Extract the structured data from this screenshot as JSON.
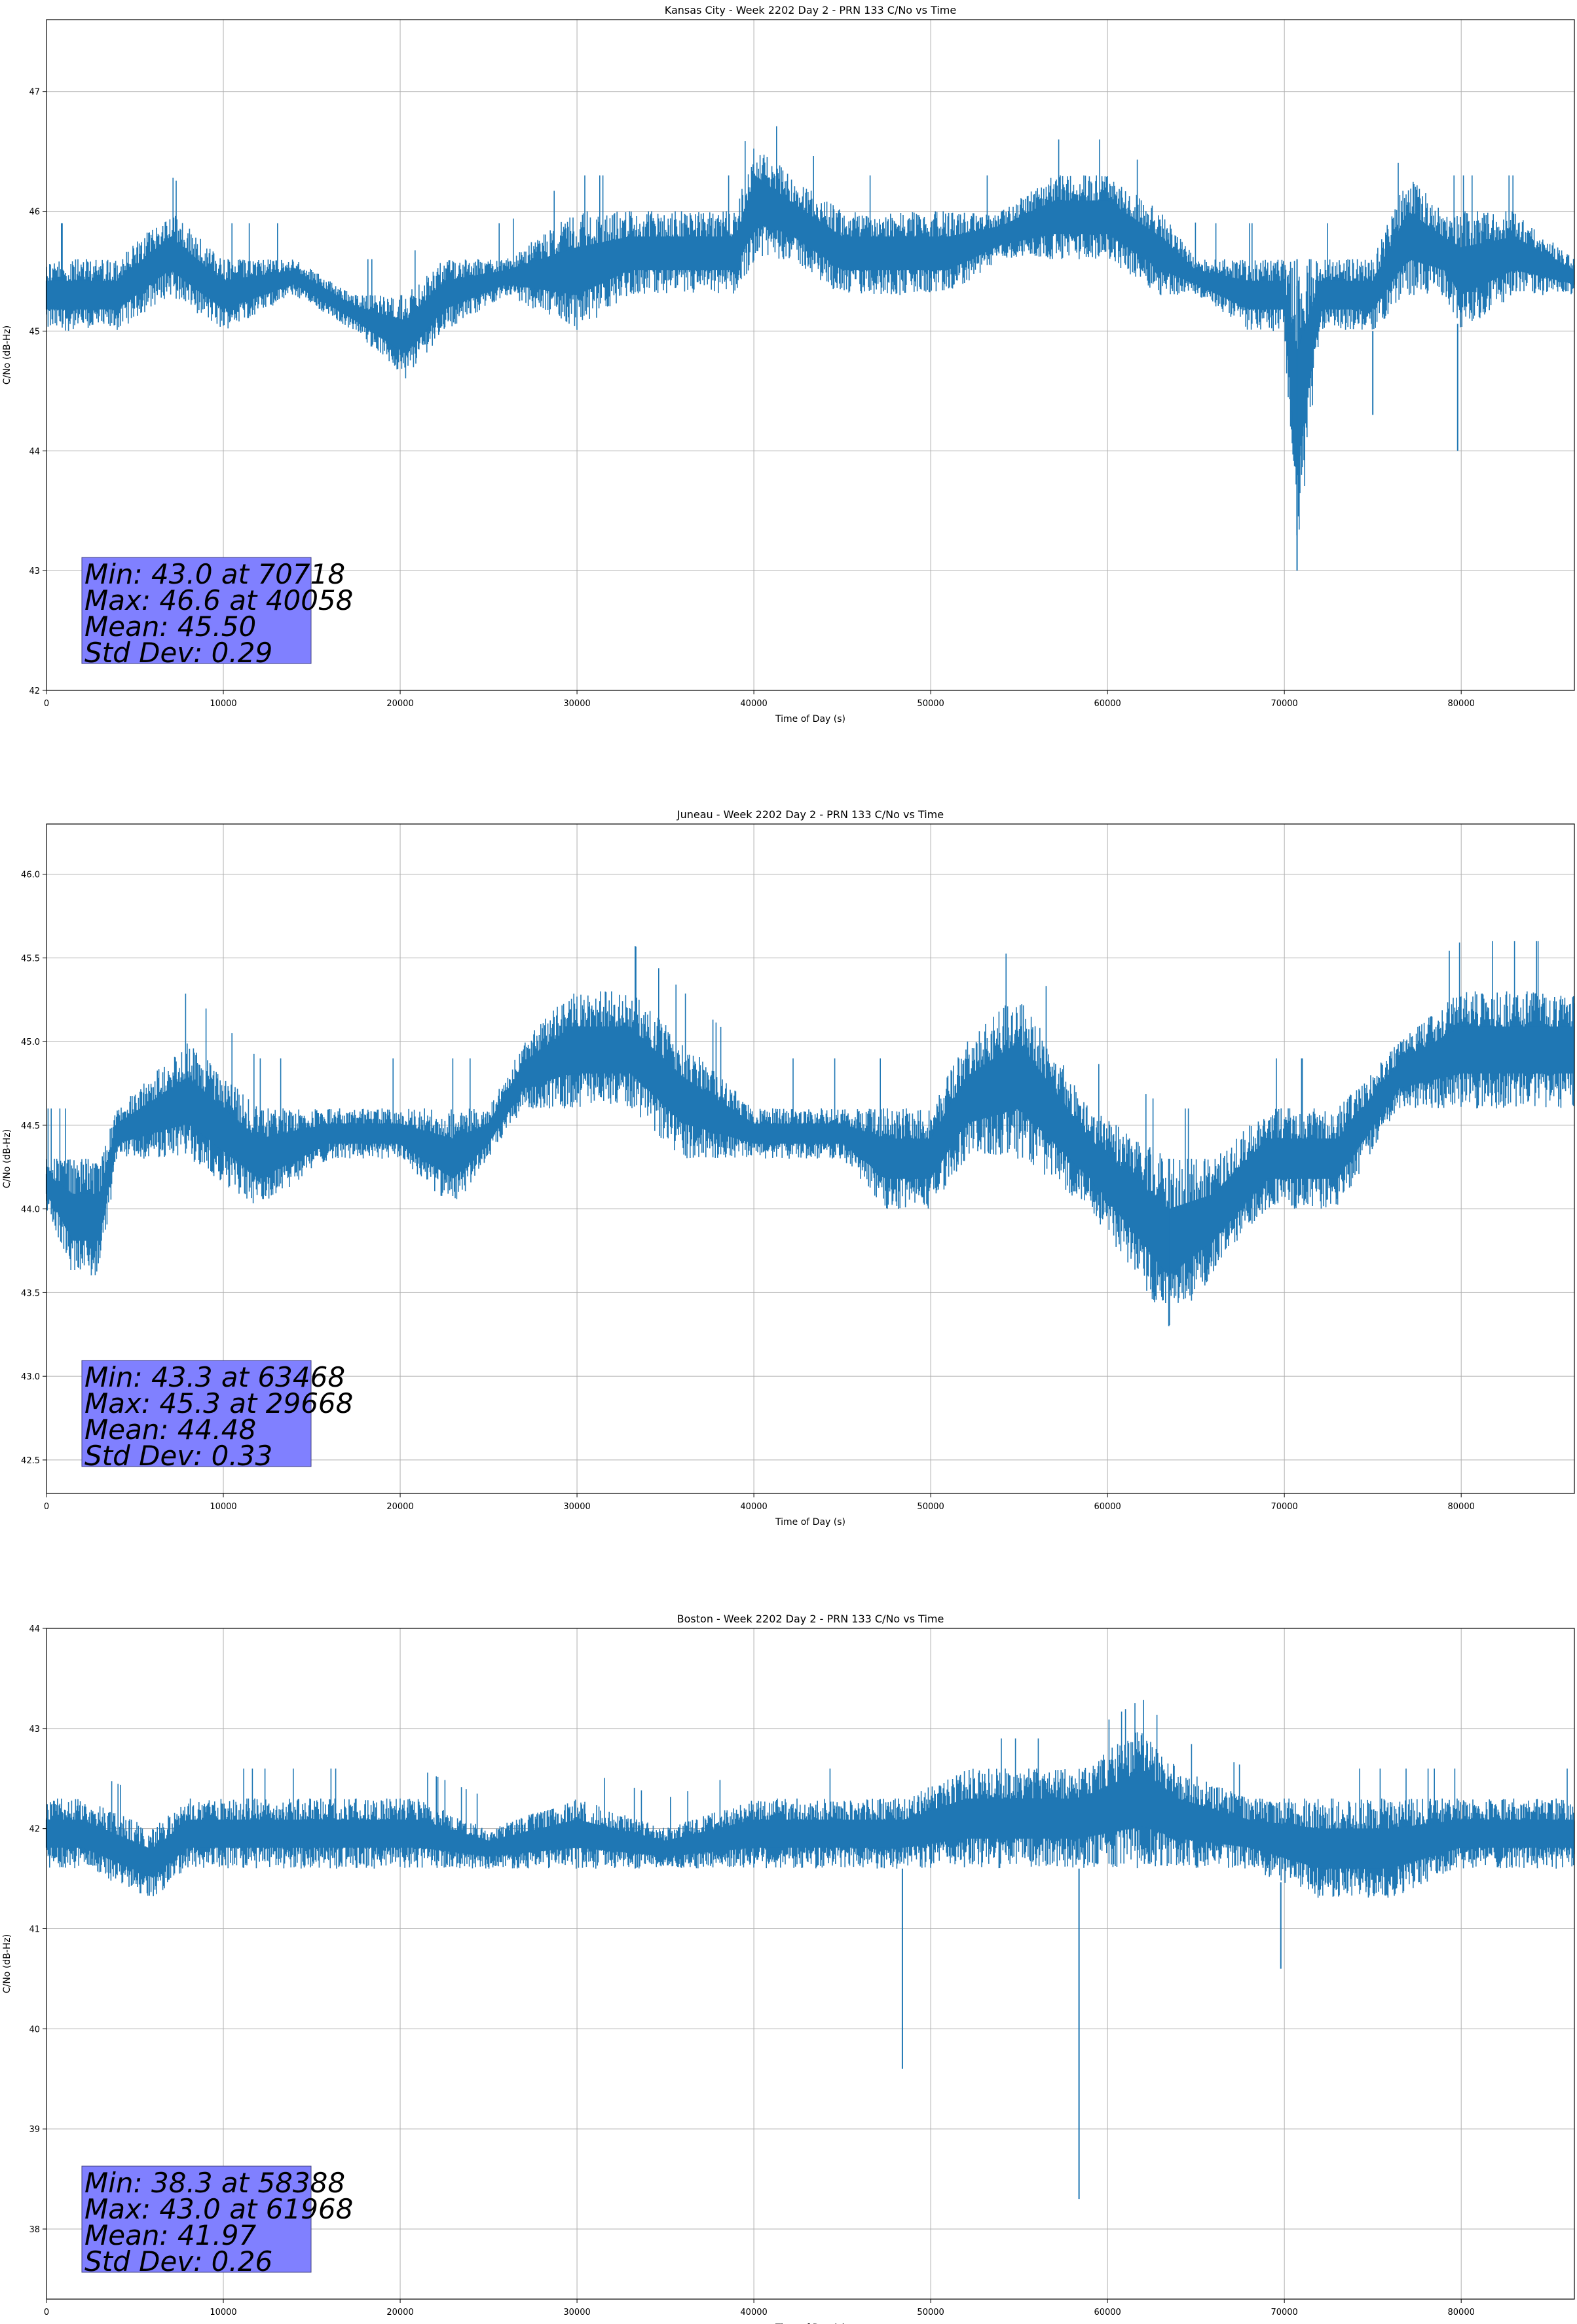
{
  "chart_data": [
    {
      "type": "line",
      "title": "Kansas City - Week 2202 Day 2 - PRN 133 C/No vs Time",
      "xlabel": "Time of Day (s)",
      "ylabel": "C/No (dB-Hz)",
      "xlim": [
        0,
        86400
      ],
      "ylim": [
        42,
        47.6
      ],
      "xticks": [
        0,
        10000,
        20000,
        30000,
        40000,
        50000,
        60000,
        70000,
        80000
      ],
      "yticks": [
        42,
        43,
        44,
        45,
        46,
        47
      ],
      "grid": true,
      "series_color": "#1f77b4",
      "series": [
        {
          "name": "C/No",
          "x": [
            0,
            4000,
            7000,
            10000,
            14000,
            17400,
            20300,
            22500,
            26000,
            30000,
            33000,
            36000,
            39000,
            40058,
            42000,
            45000,
            48000,
            51000,
            54000,
            57000,
            60000,
            63000,
            65000,
            68000,
            70000,
            70718,
            72000,
            75000,
            77000,
            79000,
            80000,
            83000,
            86400
          ],
          "low": [
            45.0,
            45.0,
            45.3,
            45.0,
            45.3,
            45.0,
            44.6,
            45.0,
            45.3,
            45.0,
            45.3,
            45.3,
            45.3,
            45.6,
            45.6,
            45.3,
            45.3,
            45.3,
            45.6,
            45.6,
            45.6,
            45.3,
            45.3,
            45.0,
            45.0,
            43.0,
            45.0,
            45.0,
            45.3,
            45.3,
            45.0,
            45.3,
            45.3
          ],
          "high": [
            45.6,
            45.6,
            46.0,
            45.6,
            45.6,
            45.3,
            45.3,
            45.6,
            45.6,
            46.0,
            46.0,
            46.0,
            46.0,
            46.6,
            46.3,
            46.0,
            46.0,
            46.0,
            46.0,
            46.3,
            46.3,
            46.0,
            45.6,
            45.6,
            45.6,
            45.6,
            45.6,
            45.6,
            46.3,
            46.0,
            46.0,
            46.0,
            45.6
          ]
        }
      ],
      "spikes": [
        {
          "x": 70718,
          "y": 43.0
        },
        {
          "x": 75000,
          "y": 44.3
        },
        {
          "x": 79800,
          "y": 44.0
        },
        {
          "x": 40058,
          "y": 46.6
        }
      ],
      "stats_box": {
        "lines": [
          "Min: 43.0 at 70718",
          "Max: 46.6 at 40058",
          "Mean: 45.50",
          "Std Dev: 0.29"
        ],
        "color": "#8080ff"
      }
    },
    {
      "type": "line",
      "title": "Juneau - Week 2202 Day 2 - PRN 133 C/No vs Time",
      "xlabel": "Time of Day (s)",
      "ylabel": "C/No (dB-Hz)",
      "xlim": [
        0,
        86400
      ],
      "ylim": [
        42.3,
        46.3
      ],
      "xticks": [
        0,
        10000,
        20000,
        30000,
        40000,
        50000,
        60000,
        70000,
        80000
      ],
      "yticks": [
        42.5,
        43.0,
        43.5,
        44.0,
        44.5,
        45.0,
        45.5,
        46.0
      ],
      "grid": true,
      "series_color": "#1f77b4",
      "series": [
        {
          "name": "C/No",
          "x": [
            0,
            1500,
            3000,
            4000,
            8000,
            12000,
            16000,
            20000,
            23000,
            25000,
            27000,
            29668,
            33000,
            36000,
            40000,
            45000,
            47500,
            50000,
            52000,
            55000,
            59000,
            63468,
            66000,
            69000,
            73000,
            76500,
            80000,
            83000,
            86400
          ],
          "low": [
            44.0,
            43.6,
            43.6,
            44.3,
            44.3,
            44.0,
            44.3,
            44.3,
            44.0,
            44.3,
            44.6,
            44.6,
            44.6,
            44.3,
            44.3,
            44.3,
            44.0,
            44.0,
            44.3,
            44.3,
            44.0,
            43.3,
            43.6,
            44.0,
            44.0,
            44.6,
            44.6,
            44.6,
            44.6
          ],
          "high": [
            44.3,
            44.3,
            44.3,
            44.6,
            45.0,
            44.6,
            44.6,
            44.6,
            44.6,
            44.6,
            45.0,
            45.3,
            45.3,
            45.0,
            44.6,
            44.6,
            44.6,
            44.6,
            45.0,
            45.3,
            44.6,
            44.3,
            44.3,
            44.6,
            44.6,
            45.0,
            45.3,
            45.3,
            45.3
          ]
        }
      ],
      "spikes": [
        {
          "x": 63468,
          "y": 43.3
        },
        {
          "x": 29668,
          "y": 45.3
        }
      ],
      "stats_box": {
        "lines": [
          "Min: 43.3 at 63468",
          "Max: 45.3 at 29668",
          "Mean: 44.48",
          "Std Dev: 0.33"
        ],
        "color": "#8080ff"
      }
    },
    {
      "type": "line",
      "title": "Boston - Week 2202 Day 2 - PRN 133 C/No vs Time",
      "xlabel": "Time of Day (s)",
      "ylabel": "C/No (dB-Hz)",
      "xlim": [
        0,
        86400
      ],
      "ylim": [
        37.3,
        44
      ],
      "xticks": [
        0,
        10000,
        20000,
        30000,
        40000,
        50000,
        60000,
        70000,
        80000
      ],
      "yticks": [
        38,
        39,
        40,
        41,
        42,
        43,
        44
      ],
      "grid": true,
      "series_color": "#1f77b4",
      "series": [
        {
          "name": "C/No",
          "x": [
            0,
            2000,
            6000,
            8000,
            12000,
            17000,
            21000,
            25000,
            30000,
            35000,
            40000,
            45000,
            48500,
            52000,
            55000,
            58388,
            61968,
            64000,
            68000,
            72000,
            76000,
            80000,
            83000,
            86400
          ],
          "low": [
            41.6,
            41.6,
            41.3,
            41.6,
            41.6,
            41.6,
            41.6,
            41.6,
            41.6,
            41.6,
            41.6,
            41.6,
            41.6,
            41.6,
            41.6,
            41.6,
            41.6,
            41.6,
            41.6,
            41.3,
            41.3,
            41.6,
            41.6,
            41.6
          ],
          "high": [
            42.3,
            42.3,
            42.0,
            42.3,
            42.3,
            42.3,
            42.3,
            42.0,
            42.3,
            42.0,
            42.3,
            42.3,
            42.3,
            42.6,
            42.6,
            42.6,
            43.0,
            42.6,
            42.3,
            42.3,
            42.3,
            42.3,
            42.3,
            42.3
          ]
        }
      ],
      "spikes": [
        {
          "x": 58388,
          "y": 38.3
        },
        {
          "x": 48400,
          "y": 39.6
        },
        {
          "x": 69800,
          "y": 40.6
        },
        {
          "x": 61968,
          "y": 43.0
        }
      ],
      "stats_box": {
        "lines": [
          "Min: 38.3 at 58388",
          "Max: 43.0 at 61968",
          "Mean: 41.97",
          "Std Dev: 0.26"
        ],
        "color": "#8080ff"
      }
    }
  ]
}
